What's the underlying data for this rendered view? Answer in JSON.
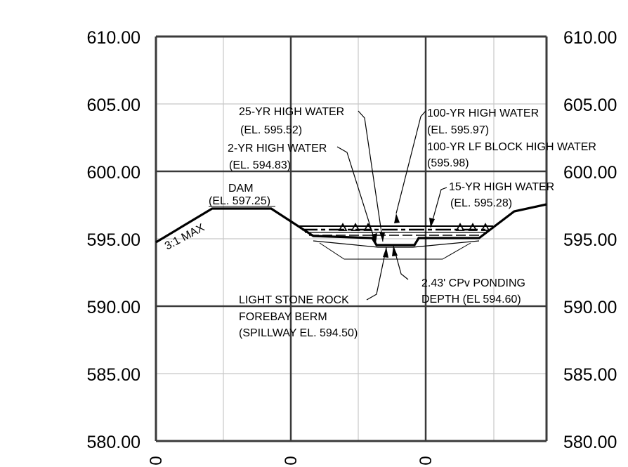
{
  "elevation_labels_left": [
    "610.00",
    "605.00",
    "600.00",
    "595.00",
    "590.00",
    "585.00",
    "580.00"
  ],
  "elevation_labels_right": [
    "610.00",
    "605.00",
    "600.00",
    "595.00",
    "590.00",
    "585.00",
    "580.00"
  ],
  "bottom_station_labels": [
    "0",
    "0",
    "0"
  ],
  "annotations": {
    "dam": [
      "DAM",
      "(EL. 597.25)"
    ],
    "slope": "3:1 MAX",
    "yr25": [
      "25-YR HIGH WATER",
      "(EL. 595.52)"
    ],
    "yr2": [
      "2-YR HIGH WATER",
      "(EL. 594.83)"
    ],
    "yr100": [
      "100-YR HIGH WATER",
      "(EL. 595.97)",
      "100-YR LF BLOCK HIGH WATER",
      "(595.98)"
    ],
    "yr15": [
      "15-YR HIGH WATER",
      "(EL. 595.28)"
    ],
    "cpv": [
      "2.43' CPv PONDING",
      "DEPTH (EL 594.60)"
    ],
    "berm": [
      "LIGHT STONE ROCK",
      "FOREBAY BERM",
      "(SPILLWAY EL. 594.50)"
    ]
  },
  "chart_data": {
    "type": "cross-section",
    "y_unit": "elevation (ft)",
    "ylim": [
      580,
      610
    ],
    "grid": true,
    "features": {
      "dam_crest_elevation": 597.25,
      "water_surface_elevations": {
        "2-yr": 594.83,
        "15-yr": 595.28,
        "25-yr": 595.52,
        "100-yr": 595.97,
        "100-yr LF block": 595.98
      },
      "cpv_ponding_elevation": 594.6,
      "cpv_ponding_depth_ft": 2.43,
      "spillway_elevation": 594.5,
      "side_slope": "3:1 MAX"
    }
  }
}
